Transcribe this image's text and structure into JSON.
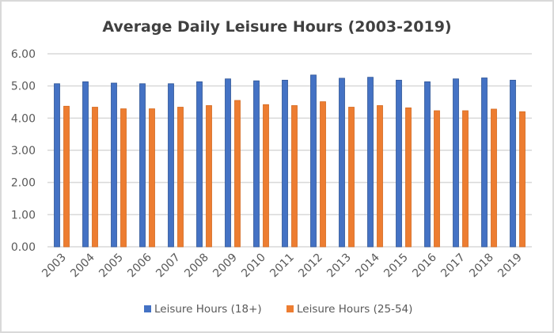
{
  "chart_data": {
    "type": "bar",
    "title": "Average Daily Leisure Hours (2003-2019)",
    "xlabel": "",
    "ylabel": "",
    "ylim": [
      0,
      6
    ],
    "yticks": [
      "0.00",
      "1.00",
      "2.00",
      "3.00",
      "4.00",
      "5.00",
      "6.00"
    ],
    "grid": true,
    "legend_position": "bottom",
    "categories": [
      "2003",
      "2004",
      "2005",
      "2006",
      "2007",
      "2008",
      "2009",
      "2010",
      "2011",
      "2012",
      "2013",
      "2014",
      "2015",
      "2016",
      "2017",
      "2018",
      "2019"
    ],
    "series": [
      {
        "name": "Leisure Hours (18+)",
        "color": "#4472C4",
        "values": [
          5.07,
          5.13,
          5.09,
          5.07,
          5.07,
          5.13,
          5.22,
          5.16,
          5.18,
          5.34,
          5.24,
          5.27,
          5.18,
          5.13,
          5.22,
          5.25,
          5.18
        ]
      },
      {
        "name": "Leisure Hours (25-54)",
        "color": "#ED7D31",
        "values": [
          4.37,
          4.34,
          4.29,
          4.29,
          4.34,
          4.39,
          4.55,
          4.42,
          4.39,
          4.51,
          4.34,
          4.39,
          4.32,
          4.23,
          4.23,
          4.28,
          4.2
        ]
      }
    ]
  }
}
